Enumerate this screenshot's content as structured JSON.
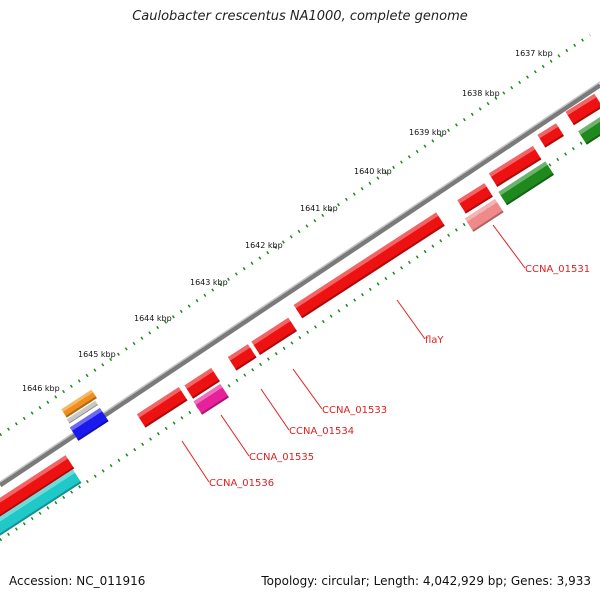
{
  "title": "Caulobacter crescentus NA1000, complete genome",
  "footer": {
    "accession": "Accession: NC_011916",
    "summary": "Topology: circular; Length: 4,042,929 bp; Genes: 3,933"
  },
  "colors": {
    "backbone": "#8a8a8a",
    "tick": "#1e8a1e",
    "label_line": "#e02020",
    "label_text": "#e02020"
  },
  "scale_ticks": [
    "1637 kbp",
    "1638 kbp",
    "1639 kbp",
    "1640 kbp",
    "1641 kbp",
    "1642 kbp",
    "1643 kbp",
    "1644 kbp",
    "1645 kbp",
    "1646 kbp"
  ],
  "features": [
    {
      "id": "f-right-a",
      "color": "#ee1111",
      "icon": "gene-arrow"
    },
    {
      "id": "f-right-b",
      "color": "#ee1111",
      "icon": "gene-arrow"
    },
    {
      "id": "f-right-c",
      "color": "#ee1111",
      "icon": "gene-arrow"
    },
    {
      "id": "f-right-d",
      "color": "#ee1111",
      "icon": "gene-arrow"
    },
    {
      "id": "f-flaY",
      "color": "#ee1111",
      "icon": "gene-arrow"
    },
    {
      "id": "f-ccna01533",
      "color": "#ee1111",
      "icon": "gene-arrow"
    },
    {
      "id": "f-ccna01534",
      "color": "#ee1111",
      "icon": "gene-arrow"
    },
    {
      "id": "f-ccna01535-upper",
      "color": "#ee1111",
      "icon": "gene-arrow"
    },
    {
      "id": "f-ccna01536",
      "color": "#ee1111",
      "icon": "gene-arrow"
    },
    {
      "id": "f-left-red",
      "color": "#ee1111",
      "icon": "gene-arrow"
    },
    {
      "id": "f-left-orange",
      "color": "#f0901a",
      "icon": "gene-arrow"
    },
    {
      "id": "f-left-gray",
      "color": "#c8c8c8",
      "icon": "gene-arrow"
    },
    {
      "id": "f-left-blue",
      "color": "#1a1aee",
      "icon": "gene-arrow"
    },
    {
      "id": "f-pink",
      "color": "#f08a8a",
      "icon": "gene-arrow"
    },
    {
      "id": "f-magenta",
      "color": "#e8209a",
      "icon": "gene-arrow"
    },
    {
      "id": "f-green-a",
      "color": "#1e8a1e",
      "icon": "gene-arrow"
    },
    {
      "id": "f-green-b",
      "color": "#1e8a1e",
      "icon": "gene-arrow"
    },
    {
      "id": "f-cyan",
      "color": "#20c8c8",
      "icon": "gene-arrow"
    }
  ],
  "gene_labels": [
    {
      "id": "ccna01531",
      "text": "CCNA_01531"
    },
    {
      "id": "flaY",
      "text": "flaY"
    },
    {
      "id": "ccna01533",
      "text": "CCNA_01533"
    },
    {
      "id": "ccna01534",
      "text": "CCNA_01534"
    },
    {
      "id": "ccna01535",
      "text": "CCNA_01535"
    },
    {
      "id": "ccna01536",
      "text": "CCNA_01536"
    }
  ]
}
